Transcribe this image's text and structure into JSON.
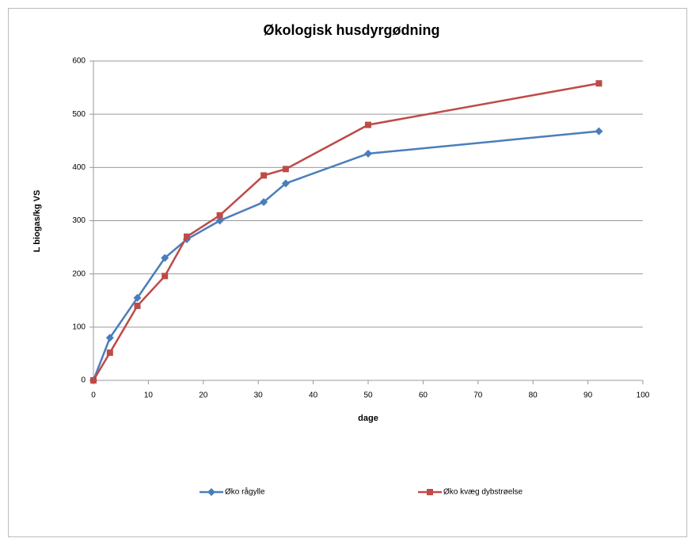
{
  "chart_data": {
    "type": "line",
    "title": "Økologisk husdyrgødning",
    "x_label": "dage",
    "y_label": "L biogas/kg VS",
    "series": [
      {
        "name": "Øko rågylle",
        "color": "#4a7ebb",
        "marker": "diamond",
        "x": [
          0,
          3,
          8,
          13,
          17,
          23,
          31,
          35,
          50,
          92
        ],
        "values": [
          0,
          80,
          155,
          230,
          265,
          300,
          335,
          370,
          426,
          468
        ]
      },
      {
        "name": "Øko kvæg dybstrøelse",
        "color": "#be4b48",
        "marker": "square",
        "x": [
          0,
          3,
          8,
          13,
          17,
          23,
          31,
          35,
          50,
          92
        ],
        "values": [
          0,
          52,
          140,
          196,
          270,
          310,
          385,
          397,
          480,
          558
        ]
      }
    ],
    "xlim": [
      0,
      100
    ],
    "xticks": [
      0,
      10,
      20,
      30,
      40,
      50,
      60,
      70,
      80,
      90,
      100
    ],
    "ylim": [
      0,
      600
    ],
    "yticks": [
      0,
      100,
      200,
      300,
      400,
      500,
      600
    ],
    "grid": true,
    "legend": "bottom"
  }
}
